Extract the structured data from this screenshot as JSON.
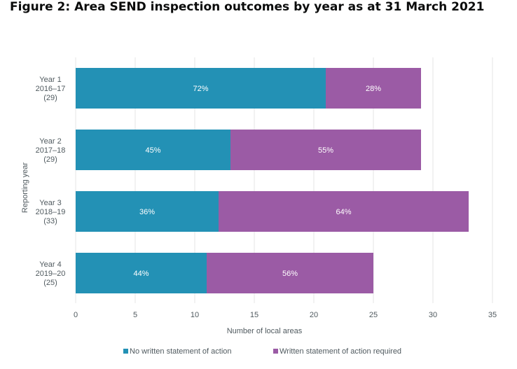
{
  "chart_data": {
    "type": "bar",
    "orientation": "horizontal",
    "stacked": true,
    "title": "Figure 2: Area SEND inspection outcomes by year as at 31 March 2021",
    "xlabel": "Number of local areas",
    "ylabel": "Reporting year",
    "xlim": [
      0,
      35
    ],
    "xticks": [
      0,
      5,
      10,
      15,
      20,
      25,
      30,
      35
    ],
    "grid": true,
    "legend_position": "bottom",
    "categories": [
      [
        "Year 1",
        "2016–17",
        "(29)"
      ],
      [
        "Year 2",
        "2017–18",
        "(29)"
      ],
      [
        "Year 3",
        "2018–19",
        "(33)"
      ],
      [
        "Year 4",
        "2019–20",
        "(25)"
      ]
    ],
    "series": [
      {
        "name": "No written statement of action",
        "color": "#2391b5",
        "values": [
          21,
          13,
          12,
          11
        ],
        "labels": [
          "72%",
          "45%",
          "36%",
          "44%"
        ]
      },
      {
        "name": "Written statement of action required",
        "color": "#9b5ba5",
        "values": [
          8,
          16,
          21,
          14
        ],
        "labels": [
          "28%",
          "55%",
          "64%",
          "56%"
        ]
      }
    ]
  }
}
